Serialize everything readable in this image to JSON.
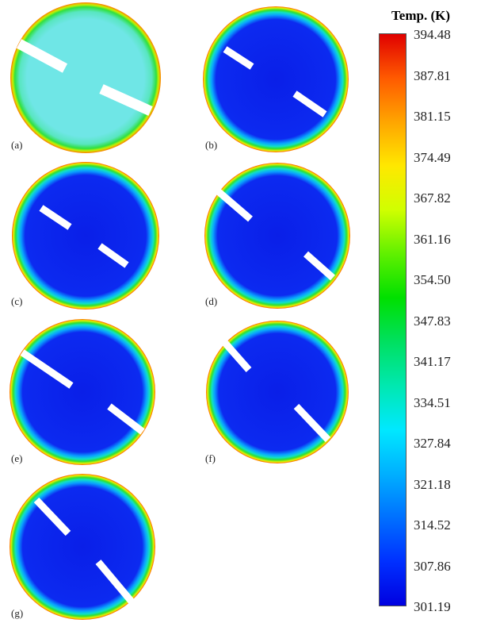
{
  "colorbar": {
    "title": "Temp. (K)",
    "ticks": [
      "394.48",
      "387.81",
      "381.15",
      "374.49",
      "367.82",
      "361.16",
      "354.50",
      "347.83",
      "341.17",
      "334.51",
      "327.84",
      "321.18",
      "314.52",
      "307.86",
      "301.19"
    ],
    "stops": [
      "#e00000",
      "#ff5a00",
      "#ffa500",
      "#ffe800",
      "#d0ff00",
      "#60f000",
      "#00e000",
      "#00e060",
      "#00e8b0",
      "#00e8ff",
      "#00b0ff",
      "#0070ff",
      "#0030ff",
      "#0000e0"
    ]
  },
  "panels": [
    {
      "id": "a",
      "label": "(a)",
      "state": "warm"
    },
    {
      "id": "b",
      "label": "(b)",
      "state": "cold"
    },
    {
      "id": "c",
      "label": "(c)",
      "state": "cold"
    },
    {
      "id": "d",
      "label": "(d)",
      "state": "cold"
    },
    {
      "id": "e",
      "label": "(e)",
      "state": "cold"
    },
    {
      "id": "f",
      "label": "(f)",
      "state": "cold"
    },
    {
      "id": "g",
      "label": "(g)",
      "state": "cold"
    }
  ]
}
